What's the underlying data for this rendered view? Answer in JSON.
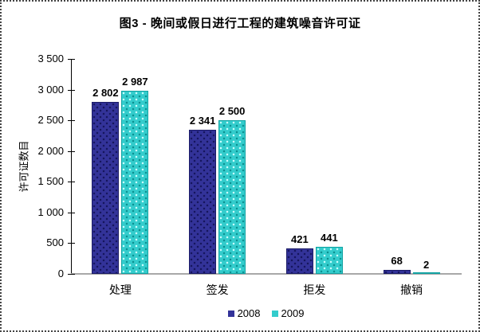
{
  "chart_data": {
    "type": "bar",
    "title": "图3 - 晚间或假日进行工程的建筑噪音许可证",
    "ylabel": "许可证数目",
    "xlabel": "",
    "categories": [
      "处理",
      "签发",
      "拒发",
      "撤销"
    ],
    "series": [
      {
        "name": "2008",
        "color": "#333399",
        "values": [
          2802,
          2341,
          421,
          68
        ],
        "value_labels": [
          "2 802",
          "2 341",
          "421",
          "68"
        ]
      },
      {
        "name": "2009",
        "color": "#33CCCC",
        "values": [
          2987,
          2500,
          441,
          2
        ],
        "value_labels": [
          "2 987",
          "2 500",
          "441",
          "2"
        ]
      }
    ],
    "ylim": [
      0,
      3500
    ],
    "ytick_step": 500,
    "ytick_labels": [
      "0",
      "500",
      "1 000",
      "1 500",
      "2 000",
      "2 500",
      "3 000",
      "3 500"
    ],
    "grid": false,
    "legend_position": "bottom-center",
    "axis_color": "#000000",
    "baseline_color": "#A8A8A8"
  }
}
